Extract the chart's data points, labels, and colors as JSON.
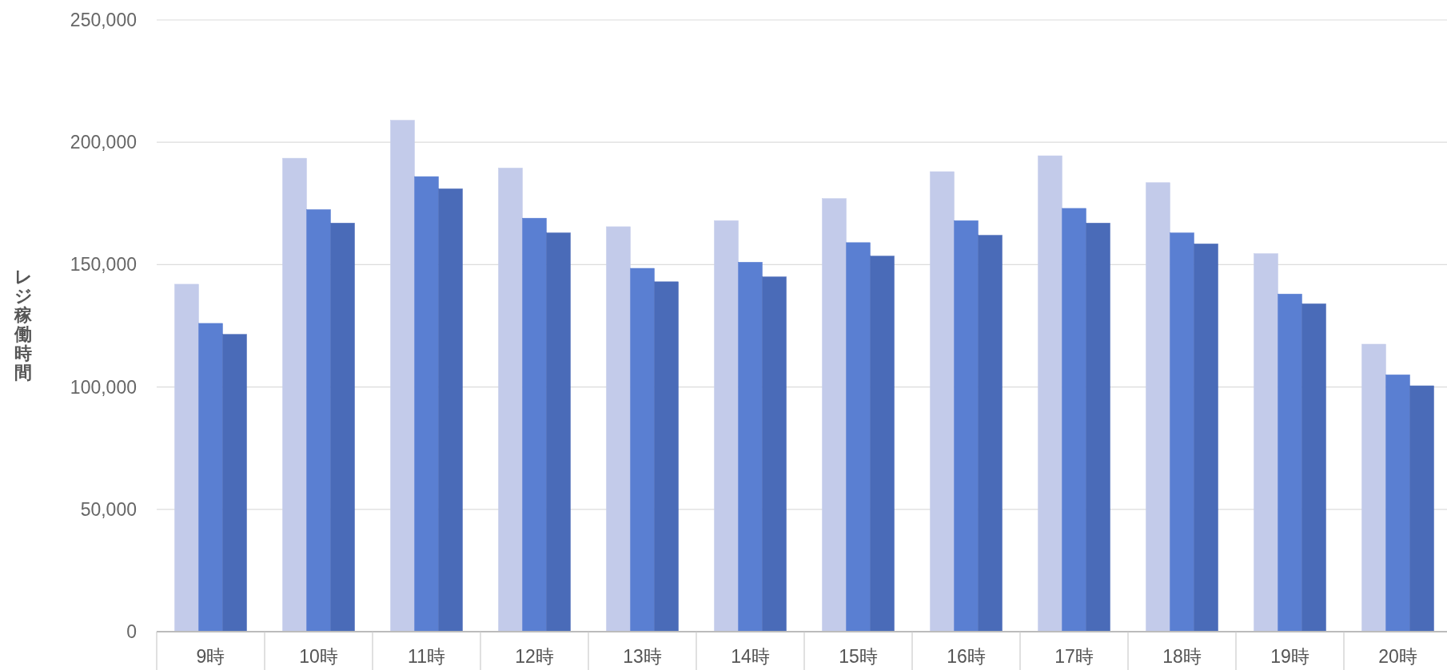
{
  "chart_data": {
    "type": "bar",
    "ylabel": "レジ稼働時間",
    "categories": [
      "9時",
      "10時",
      "11時",
      "12時",
      "13時",
      "14時",
      "15時",
      "16時",
      "17時",
      "18時",
      "19時",
      "20時"
    ],
    "series": [
      {
        "color": "#c3cbea",
        "values": [
          142000,
          193500,
          209000,
          189500,
          165500,
          168000,
          177000,
          188000,
          194500,
          183500,
          154500,
          117500
        ]
      },
      {
        "color": "#5a7fd2",
        "values": [
          126000,
          172500,
          186000,
          169000,
          148500,
          151000,
          159000,
          168000,
          173000,
          163000,
          138000,
          105000
        ]
      },
      {
        "color": "#4a6bb8",
        "values": [
          121500,
          167000,
          181000,
          163000,
          143000,
          145000,
          153500,
          162000,
          167000,
          158500,
          134000,
          100500
        ]
      }
    ],
    "ylim": [
      0,
      250000
    ],
    "yticks": [
      0,
      {
        "value": 50000,
        "label": "50,000"
      },
      {
        "value": 100000,
        "label": "100,000"
      },
      {
        "value": 150000,
        "label": "150,000"
      },
      {
        "value": 200000,
        "label": "200,000"
      },
      {
        "value": 250000,
        "label": "250,000"
      }
    ],
    "grid": "y"
  }
}
